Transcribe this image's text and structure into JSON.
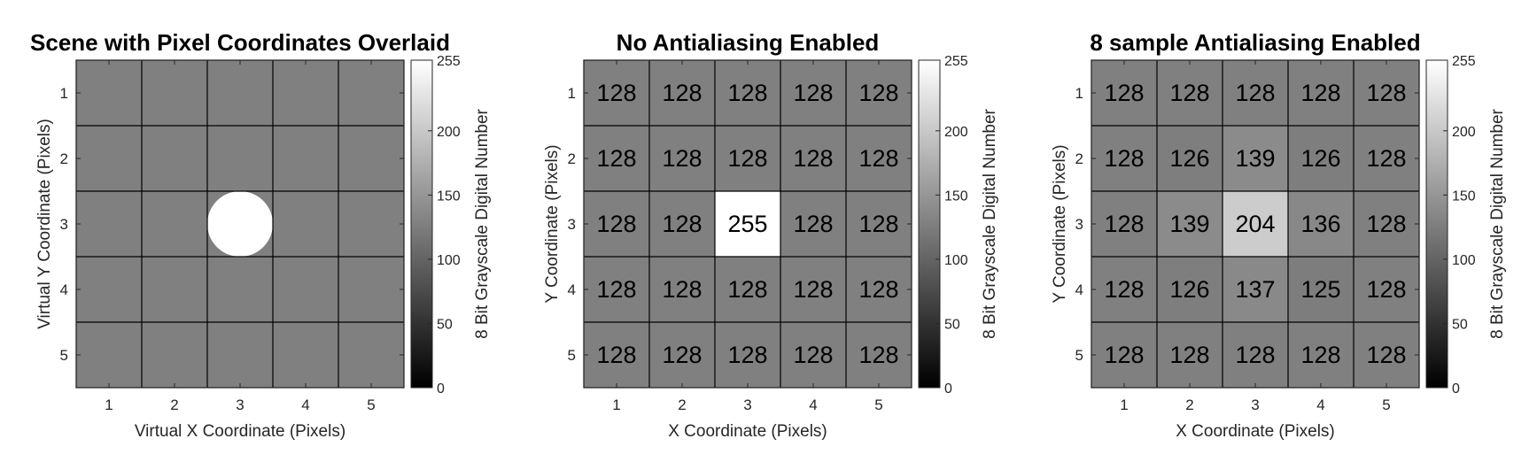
{
  "figure": {
    "background": "#ffffff",
    "grid_color": "#000000",
    "text_color": "#262626"
  },
  "chart_data": [
    {
      "type": "heatmap",
      "title": "Scene with Pixel Coordinates Overlaid",
      "xlabel": "Virtual X Coordinate (Pixels)",
      "ylabel": "Virtual Y Coordinate (Pixels)",
      "x_ticks": [
        "1",
        "2",
        "3",
        "4",
        "5"
      ],
      "y_ticks": [
        "1",
        "2",
        "3",
        "4",
        "5"
      ],
      "background_value": 128,
      "disk": {
        "center_x": 3,
        "center_y": 3,
        "radius": 0.5,
        "value": 255
      },
      "show_values": false,
      "colorbar": {
        "label": "8 Bit Grayscale Digital Number",
        "min": 0,
        "max": 255,
        "ticks": [
          "0",
          "50",
          "100",
          "150",
          "200",
          "255"
        ],
        "colormap": "gray"
      }
    },
    {
      "type": "heatmap",
      "title": "No Antialiasing Enabled",
      "xlabel": "X Coordinate (Pixels)",
      "ylabel": "Y Coordinate (Pixels)",
      "x_ticks": [
        "1",
        "2",
        "3",
        "4",
        "5"
      ],
      "y_ticks": [
        "1",
        "2",
        "3",
        "4",
        "5"
      ],
      "show_values": true,
      "values": [
        [
          128,
          128,
          128,
          128,
          128
        ],
        [
          128,
          128,
          128,
          128,
          128
        ],
        [
          128,
          128,
          255,
          128,
          128
        ],
        [
          128,
          128,
          128,
          128,
          128
        ],
        [
          128,
          128,
          128,
          128,
          128
        ]
      ],
      "colorbar": {
        "label": "8 Bit Grayscale Digital Number",
        "min": 0,
        "max": 255,
        "ticks": [
          "0",
          "50",
          "100",
          "150",
          "200",
          "255"
        ],
        "colormap": "gray"
      }
    },
    {
      "type": "heatmap",
      "title": "8 sample Antialiasing Enabled",
      "xlabel": "X Coordinate (Pixels)",
      "ylabel": "Y Coordinate (Pixels)",
      "x_ticks": [
        "1",
        "2",
        "3",
        "4",
        "5"
      ],
      "y_ticks": [
        "1",
        "2",
        "3",
        "4",
        "5"
      ],
      "show_values": true,
      "values": [
        [
          128,
          128,
          128,
          128,
          128
        ],
        [
          128,
          126,
          139,
          126,
          128
        ],
        [
          128,
          139,
          204,
          136,
          128
        ],
        [
          128,
          126,
          137,
          125,
          128
        ],
        [
          128,
          128,
          128,
          128,
          128
        ]
      ],
      "colorbar": {
        "label": "8 Bit Grayscale Digital Number",
        "min": 0,
        "max": 255,
        "ticks": [
          "0",
          "50",
          "100",
          "150",
          "200",
          "255"
        ],
        "colormap": "gray"
      }
    }
  ]
}
